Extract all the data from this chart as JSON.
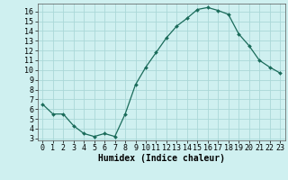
{
  "x": [
    0,
    1,
    2,
    3,
    4,
    5,
    6,
    7,
    8,
    9,
    10,
    11,
    12,
    13,
    14,
    15,
    16,
    17,
    18,
    19,
    20,
    21,
    22,
    23
  ],
  "y": [
    6.5,
    5.5,
    5.5,
    4.3,
    3.5,
    3.2,
    3.5,
    3.2,
    5.5,
    8.5,
    10.3,
    11.8,
    13.3,
    14.5,
    15.3,
    16.2,
    16.4,
    16.1,
    15.7,
    13.7,
    12.5,
    11.0,
    10.3,
    9.7
  ],
  "line_color": "#1a6b5a",
  "marker": "D",
  "marker_size": 2.0,
  "background_color": "#cff0f0",
  "grid_color": "#aad8d8",
  "xlabel": "Humidex (Indice chaleur)",
  "xlabel_fontsize": 7,
  "tick_fontsize": 6,
  "xlim": [
    -0.5,
    23.5
  ],
  "ylim": [
    2.8,
    16.8
  ],
  "yticks": [
    3,
    4,
    5,
    6,
    7,
    8,
    9,
    10,
    11,
    12,
    13,
    14,
    15,
    16
  ],
  "xticks": [
    0,
    1,
    2,
    3,
    4,
    5,
    6,
    7,
    8,
    9,
    10,
    11,
    12,
    13,
    14,
    15,
    16,
    17,
    18,
    19,
    20,
    21,
    22,
    23
  ]
}
